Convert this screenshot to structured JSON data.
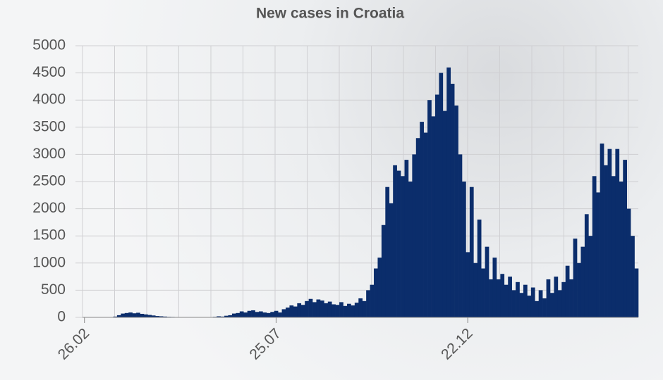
{
  "chart_data": {
    "type": "bar",
    "title": "New cases in Croatia",
    "color": "#0b2d6b",
    "grid": true,
    "ylim": [
      0,
      5000
    ],
    "yticks": [
      0,
      500,
      1000,
      1500,
      2000,
      2500,
      3000,
      3500,
      4000,
      4500,
      5000
    ],
    "categories": [
      "26.02",
      null,
      null,
      null,
      null,
      null,
      null,
      null,
      null,
      null,
      null,
      null,
      null,
      null,
      null,
      null,
      null,
      null,
      null,
      null,
      null,
      null,
      null,
      null,
      null,
      null,
      null,
      null,
      null,
      null,
      null,
      null,
      null,
      null,
      null,
      null,
      null,
      null,
      null,
      null,
      null,
      null,
      null,
      null,
      null,
      null,
      null,
      null,
      null,
      null,
      "25.07",
      null,
      null,
      null,
      null,
      null,
      null,
      null,
      null,
      null,
      null,
      null,
      null,
      null,
      null,
      null,
      null,
      null,
      null,
      null,
      null,
      null,
      null,
      null,
      null,
      null,
      null,
      null,
      null,
      null,
      null,
      null,
      null,
      null,
      null,
      null,
      null,
      null,
      null,
      null,
      null,
      null,
      null,
      null,
      null,
      null,
      null,
      null,
      null,
      null,
      "22.12",
      null,
      null,
      null,
      null,
      null,
      null,
      null,
      null,
      null,
      null,
      null,
      null,
      null,
      null,
      null,
      null,
      null,
      null,
      null,
      null,
      null,
      null,
      null,
      null,
      null,
      null,
      null,
      null,
      null,
      null,
      null,
      null,
      null,
      null,
      null,
      null,
      null,
      null,
      null,
      null,
      null,
      null,
      null,
      null
    ],
    "values": [
      0,
      0,
      0,
      0,
      0,
      0,
      2,
      5,
      15,
      40,
      70,
      80,
      90,
      75,
      85,
      65,
      55,
      45,
      35,
      25,
      20,
      15,
      10,
      8,
      5,
      3,
      2,
      1,
      1,
      2,
      3,
      1,
      2,
      5,
      10,
      20,
      15,
      30,
      40,
      70,
      80,
      110,
      90,
      120,
      130,
      100,
      110,
      90,
      80,
      100,
      120,
      90,
      150,
      180,
      220,
      200,
      260,
      230,
      300,
      340,
      280,
      330,
      310,
      260,
      290,
      240,
      230,
      280,
      210,
      250,
      220,
      270,
      350,
      300,
      500,
      600,
      900,
      1100,
      1700,
      2400,
      2100,
      2800,
      2700,
      2600,
      2900,
      2500,
      3000,
      3300,
      3600,
      3400,
      4000,
      3700,
      4100,
      4500,
      3800,
      4600,
      4300,
      3900,
      3000,
      2500,
      1200,
      2400,
      1000,
      1800,
      900,
      1300,
      700,
      1100,
      700,
      800,
      600,
      750,
      500,
      650,
      450,
      600,
      400,
      550,
      300,
      500,
      350,
      700,
      450,
      750,
      500,
      650,
      950,
      700,
      1450,
      1000,
      1300,
      1900,
      1500,
      2600,
      2300,
      3200,
      2800,
      3100,
      2600,
      3100,
      2500,
      2900,
      2000,
      1500,
      900
    ]
  }
}
